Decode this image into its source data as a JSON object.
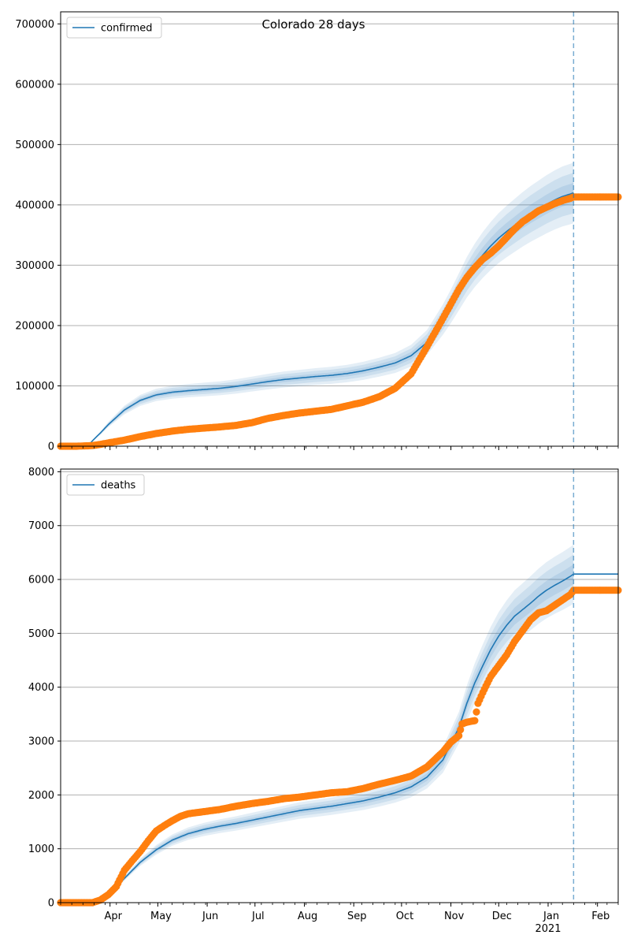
{
  "figure_title": "Colorado 28 days",
  "colors": {
    "model": "#1f77b4",
    "observed": "#ff7f0e",
    "band": "#1f77b4",
    "grid": "#b0b0b0",
    "forecast_line": "#1f77b4"
  },
  "x_axis": {
    "start_date": "2020-03-01",
    "end_date": "2021-02-14",
    "month_labels": [
      {
        "label": "Apr",
        "date": "2020-04-01"
      },
      {
        "label": "May",
        "date": "2020-05-01"
      },
      {
        "label": "Jun",
        "date": "2020-06-01"
      },
      {
        "label": "Jul",
        "date": "2020-07-01"
      },
      {
        "label": "Aug",
        "date": "2020-08-01"
      },
      {
        "label": "Sep",
        "date": "2020-09-01"
      },
      {
        "label": "Oct",
        "date": "2020-10-01"
      },
      {
        "label": "Nov",
        "date": "2020-11-01"
      },
      {
        "label": "Dec",
        "date": "2020-12-01"
      },
      {
        "label": "Jan",
        "date": "2021-01-01"
      },
      {
        "label": "Feb",
        "date": "2021-02-01"
      }
    ],
    "year_label": "2021",
    "forecast_start": "2021-01-17"
  },
  "chart_data": [
    {
      "type": "line",
      "name": "confirmed",
      "legend": "confirmed",
      "legend_position": "top-left",
      "ylim": [
        0,
        720000
      ],
      "yticks": [
        0,
        100000,
        200000,
        300000,
        400000,
        500000,
        600000,
        700000
      ],
      "tick_labels": [
        "0",
        "100000",
        "200000",
        "300000",
        "400000",
        "500000",
        "600000",
        "700000"
      ],
      "grid": true,
      "model_series": {
        "days": [
          0,
          10,
          17,
          20,
          25,
          30,
          40,
          50,
          60,
          70,
          80,
          90,
          100,
          110,
          120,
          130,
          140,
          150,
          160,
          170,
          180,
          190,
          200,
          210,
          220,
          230,
          240,
          245,
          250,
          255,
          260,
          265,
          270,
          275,
          280,
          285,
          290,
          295,
          300,
          305,
          310,
          315,
          320,
          322
        ],
        "values": [
          0,
          0,
          0,
          9000,
          22000,
          36000,
          60000,
          76000,
          85000,
          89500,
          92000,
          94000,
          96000,
          99000,
          103000,
          107000,
          110500,
          113000,
          115500,
          117500,
          120500,
          125000,
          131000,
          138000,
          150000,
          172000,
          210000,
          232000,
          256000,
          280000,
          300000,
          317000,
          332000,
          345000,
          356000,
          366000,
          376000,
          385000,
          393000,
          401000,
          408000,
          414000,
          418000,
          420000
        ],
        "band_rel": [
          0.04,
          0.08,
          0.12
        ]
      },
      "observed_series": {
        "days": [
          0,
          10,
          20,
          25,
          30,
          40,
          50,
          60,
          70,
          80,
          90,
          100,
          110,
          120,
          130,
          140,
          150,
          160,
          170,
          180,
          190,
          200,
          210,
          220,
          230,
          240,
          245,
          250,
          255,
          260,
          265,
          270,
          275,
          280,
          285,
          290,
          295,
          300,
          305,
          310,
          315,
          320,
          322
        ],
        "values": [
          0,
          0,
          1000,
          3000,
          5500,
          10000,
          16000,
          21000,
          25000,
          28000,
          30000,
          32000,
          34500,
          39000,
          46000,
          51000,
          55000,
          58000,
          61000,
          67000,
          73000,
          82000,
          96000,
          120000,
          165000,
          212000,
          236000,
          260000,
          280000,
          296000,
          310000,
          320000,
          332000,
          346000,
          360000,
          372000,
          381000,
          390000,
          396000,
          402000,
          407000,
          411000,
          413000
        ]
      }
    },
    {
      "type": "line",
      "name": "deaths",
      "legend": "deaths",
      "legend_position": "top-left",
      "ylim": [
        0,
        8050
      ],
      "yticks": [
        0,
        1000,
        2000,
        3000,
        4000,
        5000,
        6000,
        7000,
        8000
      ],
      "tick_labels": [
        "0",
        "1000",
        "2000",
        "3000",
        "4000",
        "5000",
        "6000",
        "7000",
        "8000"
      ],
      "grid": true,
      "model_series": {
        "days": [
          0,
          20,
          25,
          30,
          40,
          50,
          60,
          70,
          80,
          90,
          100,
          110,
          120,
          130,
          140,
          150,
          160,
          170,
          180,
          190,
          200,
          210,
          220,
          230,
          240,
          250,
          255,
          260,
          265,
          270,
          275,
          280,
          285,
          290,
          295,
          300,
          305,
          310,
          315,
          320,
          322
        ],
        "values": [
          0,
          0,
          50,
          150,
          450,
          750,
          980,
          1160,
          1280,
          1360,
          1420,
          1470,
          1530,
          1590,
          1650,
          1710,
          1750,
          1790,
          1840,
          1890,
          1960,
          2040,
          2150,
          2330,
          2650,
          3250,
          3700,
          4080,
          4400,
          4700,
          4950,
          5150,
          5320,
          5440,
          5560,
          5690,
          5800,
          5890,
          5970,
          6060,
          6100
        ],
        "band_rel": [
          0.03,
          0.06,
          0.09
        ]
      },
      "observed_series": {
        "days": [
          0,
          20,
          25,
          30,
          35,
          40,
          45,
          50,
          55,
          60,
          65,
          70,
          75,
          80,
          90,
          100,
          110,
          120,
          130,
          140,
          150,
          160,
          170,
          180,
          190,
          200,
          210,
          220,
          230,
          240,
          245,
          250,
          252,
          255,
          260,
          262,
          265,
          270,
          275,
          280,
          285,
          290,
          295,
          300,
          305,
          310,
          315,
          320,
          322
        ],
        "values": [
          0,
          0,
          50,
          150,
          300,
          600,
          780,
          950,
          1150,
          1330,
          1430,
          1520,
          1600,
          1650,
          1690,
          1730,
          1790,
          1840,
          1880,
          1930,
          1960,
          2000,
          2040,
          2060,
          2120,
          2200,
          2270,
          2350,
          2520,
          2800,
          2980,
          3100,
          3320,
          3350,
          3380,
          3700,
          3900,
          4200,
          4400,
          4600,
          4850,
          5050,
          5250,
          5380,
          5420,
          5520,
          5620,
          5720,
          5800
        ]
      }
    }
  ]
}
